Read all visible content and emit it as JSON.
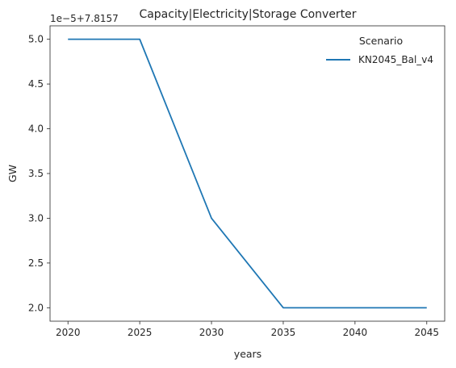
{
  "chart_data": {
    "type": "line",
    "title": "Capacity|Electricity|Storage Converter",
    "xlabel": "years",
    "ylabel": "GW",
    "y_offset_text": "1e−5+7.8157",
    "x": [
      2020,
      2025,
      2030,
      2035,
      2040,
      2045
    ],
    "series": [
      {
        "name": "KN2045_Bal_v4",
        "color": "#1f77b4",
        "values": [
          7.81575,
          7.81575,
          7.81573,
          7.81572,
          7.81572,
          7.81572
        ]
      }
    ],
    "xlim": [
      2018.75,
      2046.25
    ],
    "ylim": [
      7.8157185,
      7.8157515
    ],
    "x_ticks": [
      2020,
      2025,
      2030,
      2035,
      2040,
      2045
    ],
    "x_tick_labels": [
      "2020",
      "2025",
      "2030",
      "2035",
      "2040",
      "2045"
    ],
    "y_ticks": [
      7.81572,
      7.815725,
      7.81573,
      7.815735,
      7.81574,
      7.815745,
      7.81575
    ],
    "y_tick_labels": [
      "2.0",
      "2.5",
      "3.0",
      "3.5",
      "4.0",
      "4.5",
      "5.0"
    ],
    "grid": false,
    "legend": {
      "title": "Scenario",
      "placement": "upper-right",
      "entries": [
        "KN2045_Bal_v4"
      ]
    }
  }
}
